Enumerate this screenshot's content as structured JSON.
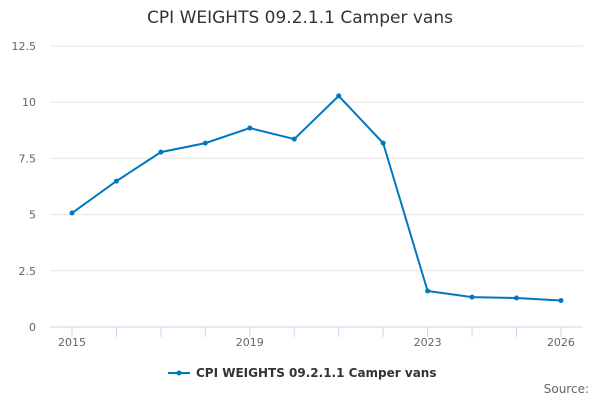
{
  "chart_data": {
    "type": "line",
    "title": "CPI WEIGHTS 09.2.1.1 Camper vans",
    "x": [
      2015,
      2016,
      2017,
      2018,
      2019,
      2020,
      2021,
      2022,
      2023,
      2024,
      2025,
      2026
    ],
    "x_tick_labels": [
      "2015",
      "2019",
      "2023",
      "2026"
    ],
    "y_tick_labels": [
      "0",
      "2.5",
      "5",
      "7.5",
      "10",
      "12.5"
    ],
    "ylim": [
      0,
      12.5
    ],
    "grid": true,
    "legend": "bottom",
    "series": [
      {
        "name": "CPI WEIGHTS 09.2.1.1 Camper vans",
        "color": "#0077c0",
        "values": [
          5.07,
          6.49,
          7.78,
          8.18,
          8.85,
          8.36,
          10.28,
          8.18,
          1.6,
          1.33,
          1.29,
          1.18
        ]
      }
    ],
    "source_label": "Source:"
  }
}
